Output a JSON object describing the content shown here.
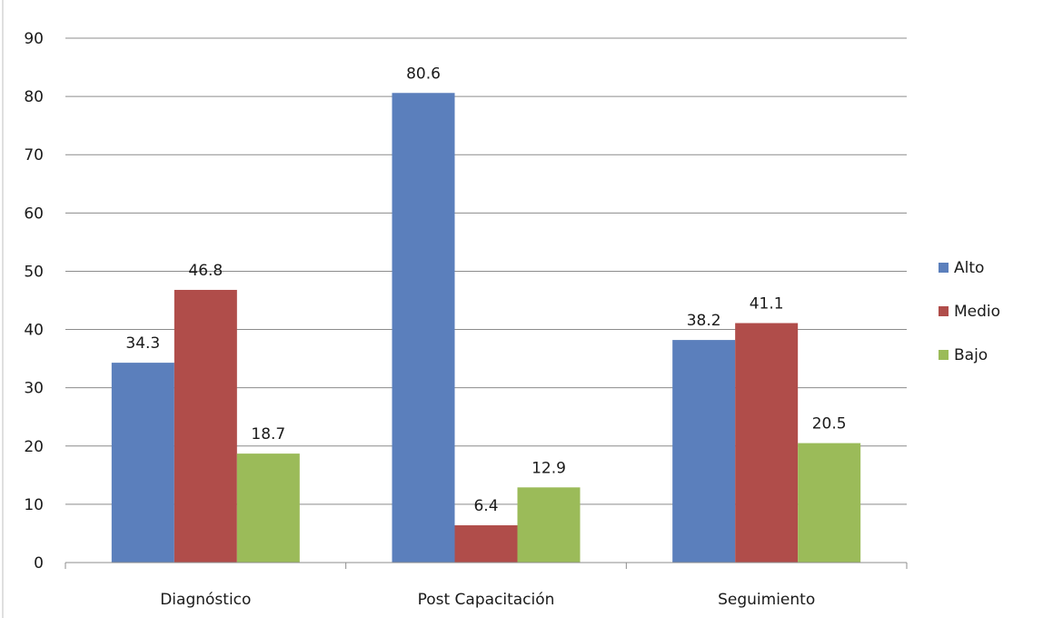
{
  "chart_data": {
    "type": "bar",
    "title": "",
    "xlabel": "",
    "ylabel": "",
    "categories": [
      "Diagnóstico",
      "Post Capacitación",
      "Seguimiento"
    ],
    "series": [
      {
        "name": "Alto",
        "color": "#5b7fbc",
        "values": [
          34.3,
          80.6,
          38.2
        ]
      },
      {
        "name": "Medio",
        "color": "#b04d4a",
        "values": [
          46.8,
          6.4,
          41.1
        ]
      },
      {
        "name": "Bajo",
        "color": "#9bbb59",
        "values": [
          18.7,
          12.9,
          20.5
        ]
      }
    ],
    "ylim": [
      0,
      90
    ],
    "yticks": [
      0,
      10,
      20,
      30,
      40,
      50,
      60,
      70,
      80,
      90
    ],
    "grid": true,
    "legend_position": "right"
  }
}
